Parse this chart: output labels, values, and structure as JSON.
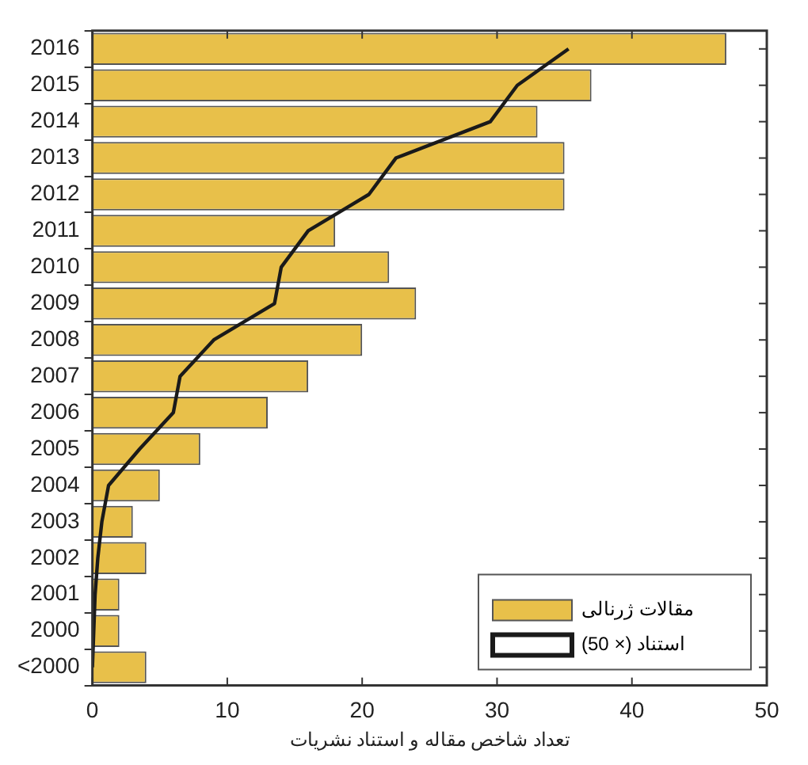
{
  "chart_data": {
    "type": "bar",
    "orientation": "horizontal",
    "xlabel": "تعداد شاخص مقاله و استناد نشریات",
    "categories": [
      "2016",
      "2015",
      "2014",
      "2013",
      "2012",
      "2011",
      "2010",
      "2009",
      "2008",
      "2007",
      "2006",
      "2005",
      "2004",
      "2003",
      "2002",
      "2001",
      "2000",
      "<2000"
    ],
    "series": [
      {
        "name": "مقالات ژرنالی",
        "color": "#e8c04a",
        "values": [
          47,
          37,
          33,
          35,
          35,
          18,
          22,
          24,
          20,
          16,
          13,
          8,
          5,
          3,
          4,
          2,
          2,
          4
        ]
      },
      {
        "name": "استناد (× 50)",
        "type": "line",
        "color": "#1a1a1a",
        "values": [
          35.3,
          31.5,
          29.5,
          22.5,
          20.5,
          16,
          14,
          13.5,
          9,
          6.5,
          6,
          3.5,
          1.2,
          0.7,
          0.4,
          0.2,
          0.1,
          0
        ]
      }
    ],
    "xlim": [
      0,
      50
    ],
    "xticks": [
      0,
      10,
      20,
      30,
      40,
      50
    ],
    "grid": false,
    "legend": "bottom right",
    "marker": "none",
    "line_style": "solid"
  }
}
